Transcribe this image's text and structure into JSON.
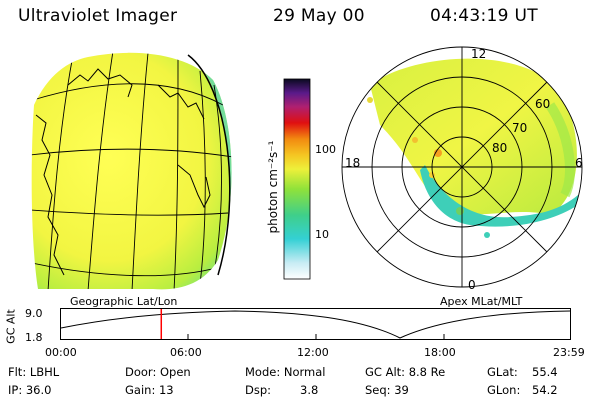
{
  "header": {
    "instrument": "Ultraviolet Imager",
    "date": "29 May 00",
    "time": "04:43:19 UT"
  },
  "colorbar": {
    "label": "photon cm⁻²s⁻¹",
    "tick_100": "100",
    "tick_10": "10"
  },
  "geo_panel": {
    "caption": "Geographic Lat/Lon"
  },
  "polar_panel": {
    "caption": "Apex MLat/MLT",
    "mlt_top": "12",
    "mlt_left": "18",
    "mlt_right": "6",
    "mlt_bottom": "0",
    "lat_60": "60",
    "lat_70": "70",
    "lat_80": "80"
  },
  "altitude_plot": {
    "axis_label": "GC Alt",
    "y_top": "9.0",
    "y_bottom": "1.8",
    "x_ticks": [
      "00:00",
      "06:00",
      "12:00",
      "18:00",
      "23:59"
    ],
    "marker_time_fraction": 0.197
  },
  "info": {
    "flt": "Flt: LBHL",
    "door": "Door: Open",
    "mode": "Mode: Normal",
    "gc_alt": "GC Alt: 8.8 Re",
    "glat_label": "GLat:",
    "glat_value": "55.4",
    "ip": "IP: 36.0",
    "gain": "Gain: 13",
    "dsp_label": "Dsp:",
    "dsp_value": "3.8",
    "seq": "Seq: 39",
    "glon_label": "GLon:",
    "glon_value": "54.2"
  },
  "colors": {
    "background": "#ffffff",
    "text": "#000000",
    "marker": "#ff0000"
  }
}
